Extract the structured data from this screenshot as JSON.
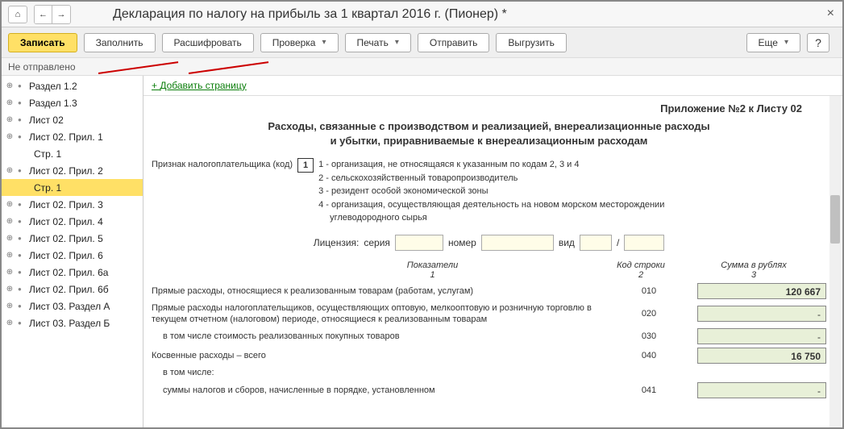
{
  "window": {
    "title": "Декларация по налогу на прибыль за 1 квартал 2016 г. (Пионер) *",
    "close_icon": "×"
  },
  "titlebar_icons": {
    "home": "⌂",
    "back": "←",
    "forward": "→"
  },
  "toolbar": {
    "save": "Записать",
    "fill": "Заполнить",
    "decode": "Расшифровать",
    "check": "Проверка",
    "print": "Печать",
    "send": "Отправить",
    "export": "Выгрузить",
    "more": "Еще",
    "help": "?"
  },
  "status": "Не отправлено",
  "sidebar": {
    "items": [
      {
        "label": "Раздел 1.2",
        "level": 0,
        "exp": true
      },
      {
        "label": "Раздел 1.3",
        "level": 0,
        "exp": true
      },
      {
        "label": "Лист 02",
        "level": 0,
        "exp": true
      },
      {
        "label": "Лист 02. Прил. 1",
        "level": 0,
        "exp": true
      },
      {
        "label": "Стр. 1",
        "level": 1,
        "exp": false
      },
      {
        "label": "Лист 02. Прил. 2",
        "level": 0,
        "exp": true
      },
      {
        "label": "Стр. 1",
        "level": 1,
        "exp": false,
        "selected": true
      },
      {
        "label": "Лист 02. Прил. 3",
        "level": 0,
        "exp": true
      },
      {
        "label": "Лист 02. Прил. 4",
        "level": 0,
        "exp": true
      },
      {
        "label": "Лист 02. Прил. 5",
        "level": 0,
        "exp": true
      },
      {
        "label": "Лист 02. Прил. 6",
        "level": 0,
        "exp": true
      },
      {
        "label": "Лист 02. Прил. 6а",
        "level": 0,
        "exp": true
      },
      {
        "label": "Лист 02. Прил. 6б",
        "level": 0,
        "exp": true
      },
      {
        "label": "Лист 03. Раздел А",
        "level": 0,
        "exp": true
      },
      {
        "label": "Лист 03. Раздел Б",
        "level": 0,
        "exp": true
      }
    ]
  },
  "content": {
    "add_page": "Добавить страницу",
    "appendix": "Приложение №2 к Листу 02",
    "title_line1": "Расходы, связанные с производством и реализацией, внереализационные расходы",
    "title_line2": "и убытки, приравниваемые к внереализационным расходам",
    "taxpayer_label": "Признак налогоплательщика (код)",
    "taxpayer_code": "1",
    "legend": {
      "l1": "1 - организация, не относящаяся к указанным по кодам 2, 3 и 4",
      "l2": "2 - сельскохозяйственный товаропроизводитель",
      "l3": "3 - резидент особой экономической зоны",
      "l4": "4 - организация, осуществляющая деятельность на новом морском месторождении",
      "l5": "углеводородного сырья"
    },
    "license": {
      "label": "Лицензия:",
      "series": "серия",
      "number": "номер",
      "type": "вид",
      "slash": "/"
    },
    "columns": {
      "indicator": "Показатели",
      "indicator_num": "1",
      "code": "Код строки",
      "code_num": "2",
      "sum": "Сумма в рублях",
      "sum_num": "3"
    },
    "rows": [
      {
        "label": "Прямые расходы, относящиеся к реализованным товарам (работам, услугам)",
        "code": "010",
        "value": "120 667",
        "indent": false
      },
      {
        "label": "Прямые расходы налогоплательщиков, осуществляющих оптовую, мелкооптовую и розничную торговлю в текущем отчетном (налоговом) периоде, относящиеся к реализованным товарам",
        "code": "020",
        "value": "",
        "indent": false
      },
      {
        "label": "в том числе стоимость реализованных покупных товаров",
        "code": "030",
        "value": "",
        "indent": true
      },
      {
        "label": "Косвенные расходы – всего",
        "code": "040",
        "value": "16 750",
        "indent": false
      },
      {
        "label": "в том числе:",
        "code": "",
        "value": null,
        "indent": true
      },
      {
        "label": "суммы налогов и сборов, начисленные в порядке, установленном",
        "code": "041",
        "value": "",
        "indent": true
      }
    ]
  },
  "colors": {
    "primary_btn_bg": "#ffe066",
    "primary_btn_border": "#d4b020",
    "selected_bg": "#ffe066",
    "input_yellow": "#fffde8",
    "input_green": "#e8f0d8",
    "red_underline": "#c00",
    "link_green": "#0b7e0b"
  }
}
